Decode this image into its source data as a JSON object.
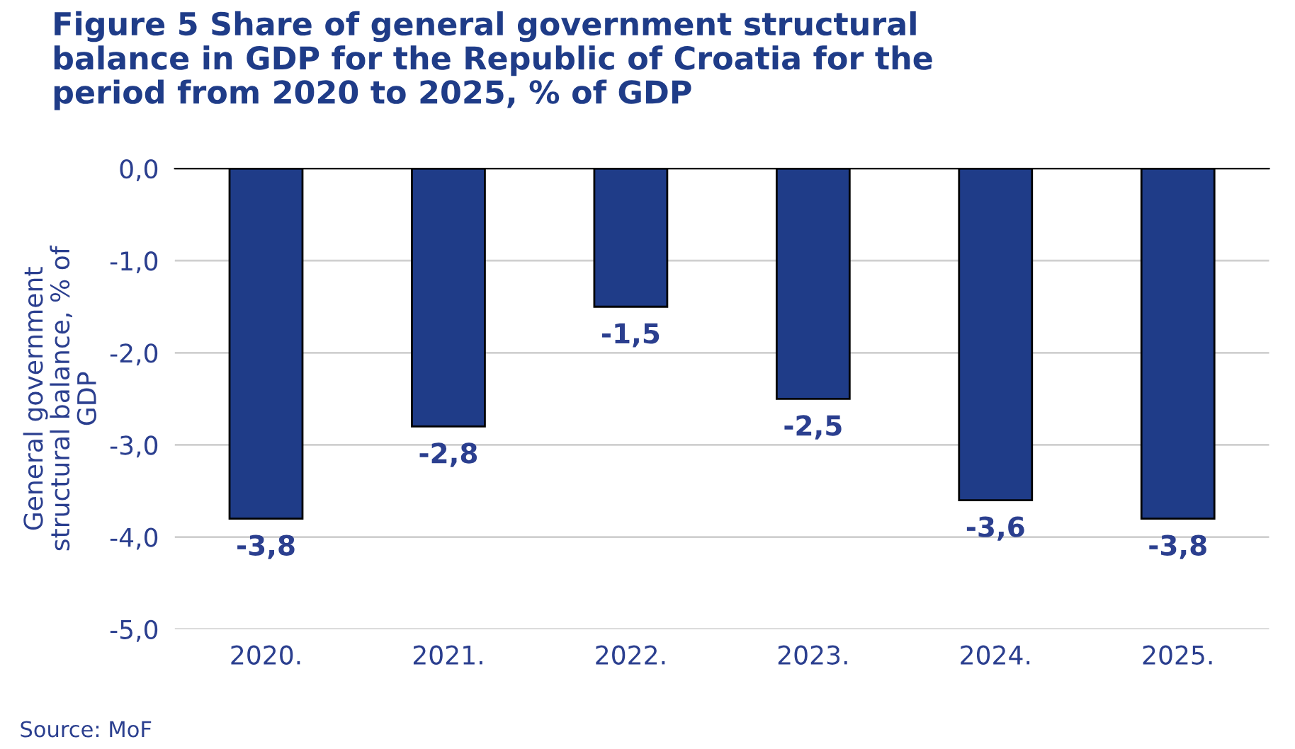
{
  "chart_data": {
    "type": "bar",
    "title": "Figure 5 Share of general government structural balance in GDP for the Republic of Croatia for the period from 2020 to 2025, % of GDP",
    "ylabel": "General government structural balance, % of GDP",
    "categories": [
      "2020.",
      "2021.",
      "2022.",
      "2023.",
      "2024.",
      "2025."
    ],
    "values": [
      -3.8,
      -2.8,
      -1.5,
      -2.5,
      -3.6,
      -3.8
    ],
    "value_labels": [
      "-3,8",
      "-2,8",
      "-1,5",
      "-2,5",
      "-3,6",
      "-3,8"
    ],
    "color": "#1f3c88",
    "ylim": [
      -5,
      0
    ],
    "yticks": [
      {
        "value": 0,
        "label": "0,0"
      },
      {
        "value": -1,
        "label": "-1,0"
      },
      {
        "value": -2,
        "label": "-2,0"
      },
      {
        "value": -3,
        "label": "-3,0"
      },
      {
        "value": -4,
        "label": "-4,0"
      },
      {
        "value": -5,
        "label": "-5,0"
      }
    ],
    "grid": "y",
    "annotations": [
      "Source: MoF"
    ]
  }
}
